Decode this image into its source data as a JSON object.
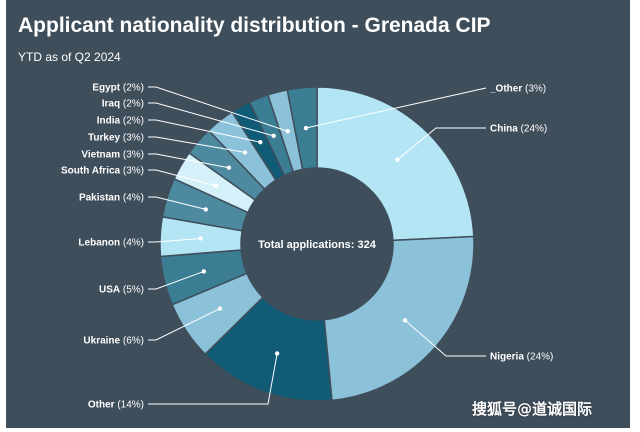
{
  "chart_data": {
    "type": "pie",
    "variant": "donut",
    "title": "Applicant nationality distribution - Grenada CIP",
    "subtitle": "YTD as of Q2 2024",
    "center_label": "Total applications: 324",
    "legend": "none",
    "slices": [
      {
        "label": "China",
        "pct_label": "(24%)",
        "value": 24,
        "color": "#b3e5f5"
      },
      {
        "label": "Nigeria",
        "pct_label": "(24%)",
        "value": 24,
        "color": "#8cc1da"
      },
      {
        "label": "Other",
        "pct_label": "(14%)",
        "value": 14,
        "color": "#105b75"
      },
      {
        "label": "Ukraine",
        "pct_label": "(6%)",
        "value": 6,
        "color": "#8cc1da"
      },
      {
        "label": "USA",
        "pct_label": "(5%)",
        "value": 5,
        "color": "#3b7d93"
      },
      {
        "label": "Lebanon",
        "pct_label": "(4%)",
        "value": 4,
        "color": "#b3e5f5"
      },
      {
        "label": "Pakistan",
        "pct_label": "(4%)",
        "value": 4,
        "color": "#4d8aa0"
      },
      {
        "label": "South Africa",
        "pct_label": "(3%)",
        "value": 3,
        "color": "#d4f0f9"
      },
      {
        "label": "Vietnam",
        "pct_label": "(3%)",
        "value": 3,
        "color": "#4d8aa0"
      },
      {
        "label": "Turkey",
        "pct_label": "(3%)",
        "value": 3,
        "color": "#8cc1da"
      },
      {
        "label": "India",
        "pct_label": "(2%)",
        "value": 2,
        "color": "#105b75"
      },
      {
        "label": "Iraq",
        "pct_label": "(2%)",
        "value": 2,
        "color": "#3b7d93"
      },
      {
        "label": "Egypt",
        "pct_label": "(2%)",
        "value": 2,
        "color": "#8cc1da"
      },
      {
        "label": "_Other",
        "pct_label": "(3%)",
        "value": 3,
        "color": "#3b7d93"
      }
    ]
  },
  "colors": {
    "background": "#3f4e5b",
    "text": "#ffffff",
    "center_fill": "#3f4e5b",
    "leader_line": "#ffffff"
  },
  "watermark": "搜狐号@道诚国际"
}
